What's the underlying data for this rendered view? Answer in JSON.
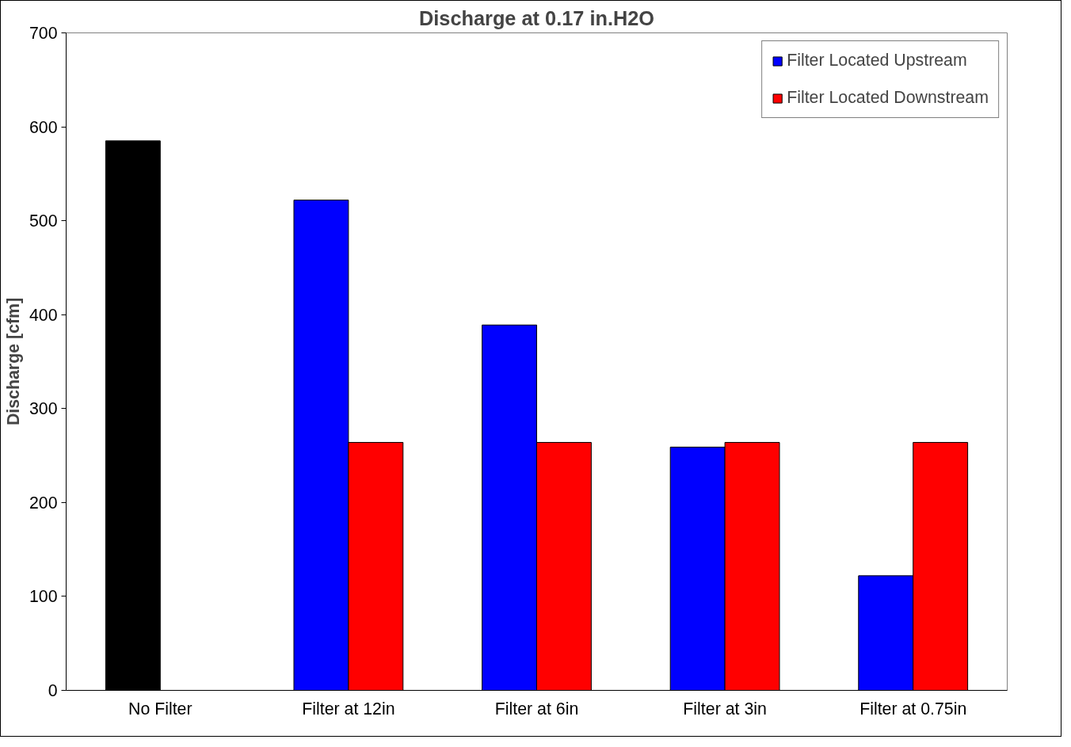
{
  "chart_data": {
    "type": "bar",
    "title": "Discharge at 0.17 in.H2O",
    "ylabel": "Discharge [cfm]",
    "categories": [
      "No Filter",
      "Filter at 12in",
      "Filter at 6in",
      "Filter at 3in",
      "Filter at 0.75in"
    ],
    "series": [
      {
        "name": "Filter Located Upstream",
        "color": "#0000ff",
        "colors": [
          "#000000",
          "#0000ff",
          "#0000ff",
          "#0000ff",
          "#0000ff"
        ],
        "values": [
          585,
          522,
          389,
          259,
          122
        ]
      },
      {
        "name": "Filter Located Downstream",
        "color": "#ff0000",
        "values": [
          null,
          264,
          264,
          264,
          264
        ]
      }
    ],
    "ylim": [
      0,
      700
    ],
    "yticks": [
      0,
      100,
      200,
      300,
      400,
      500,
      600,
      700
    ],
    "grid": false,
    "legend": "top right"
  }
}
